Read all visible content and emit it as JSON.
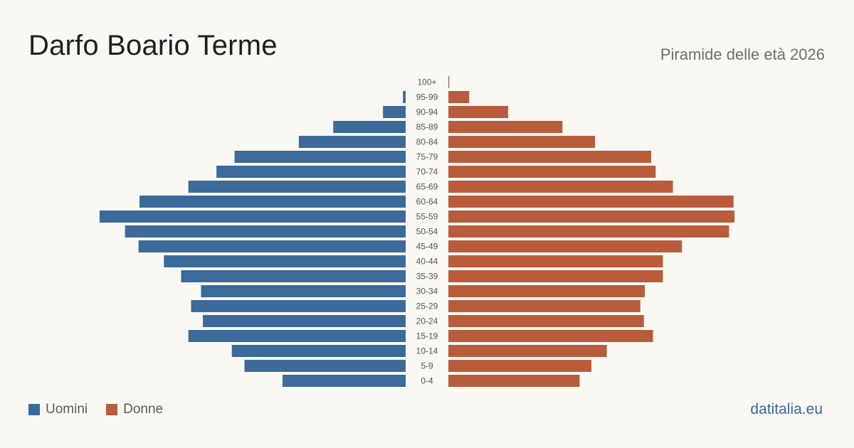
{
  "header": {
    "title": "Darfo Boario Terme",
    "subtitle": "Piramide delle età 2026"
  },
  "legend": {
    "men_label": "Uomini",
    "women_label": "Donne"
  },
  "brand": {
    "text": "datitalia.eu"
  },
  "colors": {
    "men": "#3b6a9b",
    "women": "#b95c3b",
    "brand": "#3b6a9b"
  },
  "chart_data": {
    "type": "bar",
    "orientation": "horizontal-pyramid",
    "categories": [
      "100+",
      "95-99",
      "90-94",
      "85-89",
      "80-84",
      "75-79",
      "70-74",
      "65-69",
      "60-64",
      "55-59",
      "50-54",
      "45-49",
      "40-44",
      "35-39",
      "30-34",
      "25-29",
      "20-24",
      "15-19",
      "10-14",
      "5-9",
      "0-4"
    ],
    "series": [
      {
        "name": "Uomini",
        "values": [
          0,
          3,
          25,
          80,
          118,
          189,
          209,
          240,
          294,
          338,
          310,
          295,
          267,
          248,
          226,
          237,
          224,
          240,
          192,
          178,
          136
        ]
      },
      {
        "name": "Donne",
        "values": [
          1,
          23,
          66,
          126,
          162,
          224,
          229,
          248,
          315,
          316,
          310,
          258,
          237,
          237,
          217,
          212,
          216,
          226,
          175,
          158,
          145
        ]
      }
    ],
    "grid": false,
    "legend_position": "bottom-left"
  }
}
